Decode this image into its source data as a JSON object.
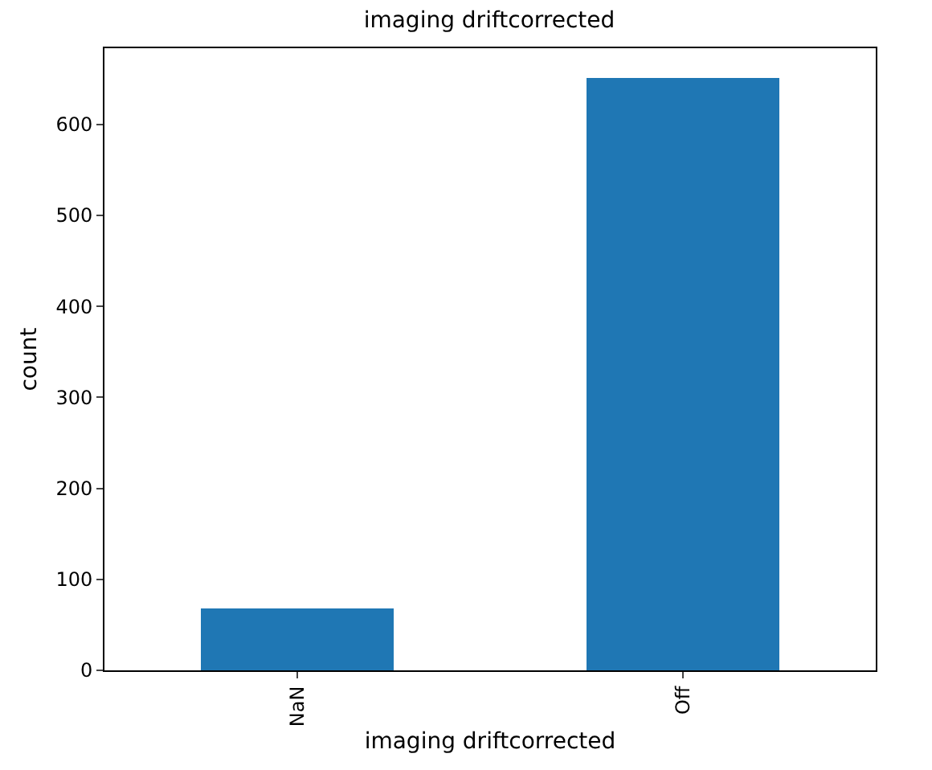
{
  "chart_data": {
    "type": "bar",
    "title": "imaging driftcorrected",
    "xlabel": "imaging driftcorrected",
    "ylabel": "count",
    "categories": [
      "NaN",
      "Off"
    ],
    "values": [
      68,
      651
    ],
    "color": "#1f77b4",
    "ylim": [
      0,
      683.6
    ],
    "yticks": [
      0,
      100,
      200,
      300,
      400,
      500,
      600
    ],
    "grid": false
  }
}
